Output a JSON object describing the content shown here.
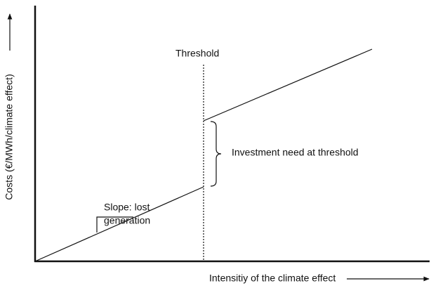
{
  "labels": {
    "threshold": "Threshold",
    "investment": "Investment need at threshold",
    "slope": [
      "Slope: lost",
      "generation"
    ],
    "x_axis": "Intensitiy of the climate effect",
    "y_axis": "Costs (€/MWh/climate effect)"
  }
}
